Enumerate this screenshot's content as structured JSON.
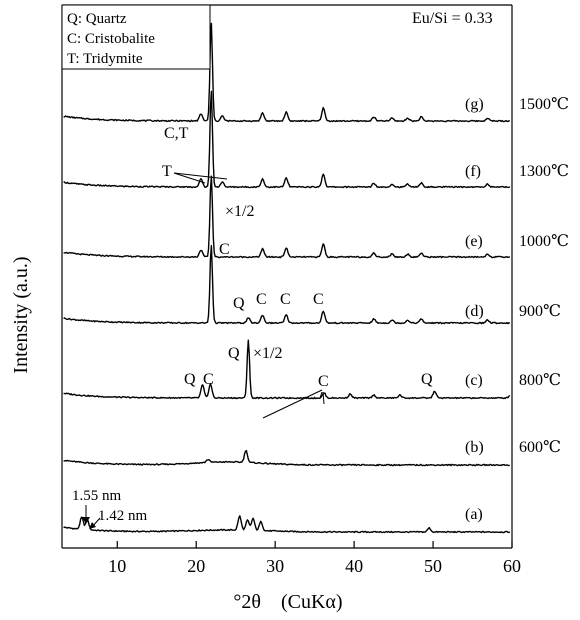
{
  "chart_data": {
    "type": "line",
    "xlabel": "°2θ　(CuKα)",
    "ylabel": "Intensity (a.u.)",
    "xlim": [
      3,
      60
    ],
    "xticks": [
      "10",
      "20",
      "30",
      "40",
      "50",
      "60"
    ],
    "legend": {
      "placement": "top-left",
      "entries": [
        "Q: Quartz",
        "C: Cristobalite",
        "T: Tridymite"
      ]
    },
    "composition": "Eu/Si = 0.33",
    "series": [
      {
        "letter": "(a)",
        "temperature": "",
        "peaks": [
          [
            5.5,
            12
          ],
          [
            6.2,
            10
          ],
          [
            25.5,
            14
          ],
          [
            26.5,
            10
          ],
          [
            27.2,
            12
          ],
          [
            28.2,
            9
          ],
          [
            49.5,
            4
          ]
        ]
      },
      {
        "letter": "(b)",
        "temperature": "600℃",
        "peaks": [
          [
            26.3,
            12
          ],
          [
            21.5,
            3
          ]
        ]
      },
      {
        "letter": "(c)",
        "temperature": "800℃",
        "peaks": [
          [
            20.8,
            13
          ],
          [
            21.8,
            14
          ],
          [
            26.6,
            58
          ],
          [
            36.2,
            5
          ],
          [
            39.5,
            4
          ],
          [
            42.5,
            3
          ],
          [
            45.8,
            3
          ],
          [
            50.2,
            7
          ],
          [
            59.8,
            3
          ]
        ]
      },
      {
        "letter": "(d)",
        "temperature": "900℃",
        "peaks": [
          [
            21.9,
            78
          ],
          [
            26.6,
            5
          ],
          [
            28.4,
            8
          ],
          [
            31.4,
            8
          ],
          [
            36.1,
            12
          ],
          [
            42.5,
            4
          ],
          [
            44.8,
            3
          ],
          [
            46.8,
            3
          ],
          [
            48.5,
            4
          ],
          [
            56.9,
            3
          ]
        ]
      },
      {
        "letter": "(e)",
        "temperature": "1000℃",
        "peaks": [
          [
            20.6,
            7
          ],
          [
            21.9,
            82
          ],
          [
            28.4,
            8
          ],
          [
            31.4,
            9
          ],
          [
            36.1,
            13
          ],
          [
            42.5,
            4
          ],
          [
            44.8,
            3
          ],
          [
            46.8,
            3
          ],
          [
            48.5,
            4
          ],
          [
            56.9,
            3
          ]
        ]
      },
      {
        "letter": "(f)",
        "temperature": "1300℃",
        "peaks": [
          [
            20.6,
            8
          ],
          [
            21.9,
            96
          ],
          [
            23.3,
            5
          ],
          [
            28.4,
            8
          ],
          [
            31.4,
            9
          ],
          [
            36.1,
            13
          ],
          [
            42.5,
            4
          ],
          [
            44.8,
            3
          ],
          [
            46.8,
            3
          ],
          [
            48.5,
            4
          ],
          [
            56.9,
            3
          ]
        ]
      },
      {
        "letter": "(g)",
        "temperature": "1500℃",
        "peaks": [
          [
            20.6,
            7
          ],
          [
            21.9,
            98
          ],
          [
            23.3,
            5
          ],
          [
            28.4,
            8
          ],
          [
            31.4,
            9
          ],
          [
            36.1,
            13
          ],
          [
            42.5,
            4
          ],
          [
            44.8,
            3
          ],
          [
            46.8,
            3
          ],
          [
            48.5,
            4
          ],
          [
            56.9,
            3
          ]
        ]
      }
    ],
    "annotations": {
      "peak_1_55": "1.55 nm",
      "peak_1_42": "1.42 nm",
      "c_Q1": "Q",
      "c_C1": "C",
      "c_Q2": "Q",
      "c_half": "×1/2",
      "c_C2": "C",
      "c_Q3": "Q",
      "d_C1": "C",
      "d_Q": "Q",
      "d_C2": "C",
      "d_C3": "C",
      "d_C4": "C",
      "e_half": "×1/2",
      "f_CT": "C,T",
      "f_T": "T"
    }
  }
}
